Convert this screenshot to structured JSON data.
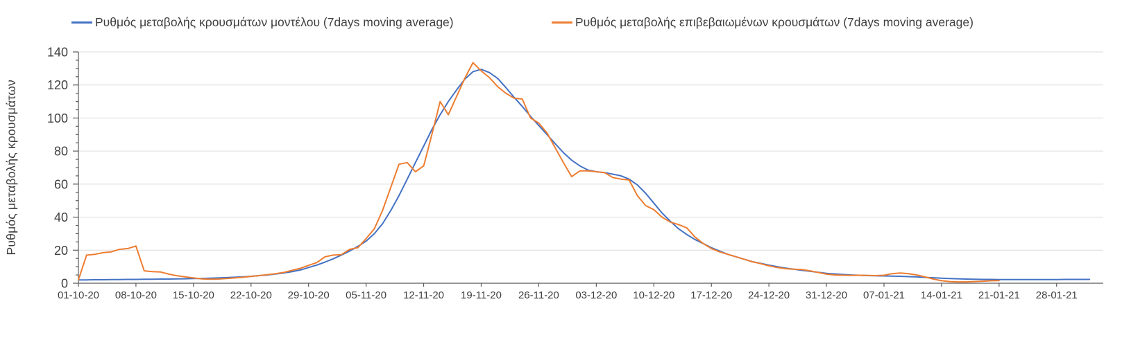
{
  "legend": {
    "items": [
      {
        "label": "Ρυθμός μεταβολής κρουσμάτων μοντέλου (7days moving average)",
        "color": "#4472C4"
      },
      {
        "label": "Ρυθμός μεταβολής επιβεβαιωμένων κρουσμάτων (7days moving average)",
        "color": "#ED7D31"
      }
    ]
  },
  "chart_data": {
    "type": "line",
    "title": "",
    "xlabel": "",
    "ylabel": "Ρυθμός μεταβολής κρουσμάτων",
    "ylim": [
      0,
      140
    ],
    "y_major_step": 20,
    "y_minor_step": 5,
    "y_tick_labels": [
      "0",
      "20",
      "40",
      "60",
      "80",
      "100",
      "120",
      "140"
    ],
    "x_unit": "days since 01-10-20",
    "x_tick_interval_days": 7,
    "x_tick_labels": [
      "01-10-20",
      "08-10-20",
      "15-10-20",
      "22-10-20",
      "29-10-20",
      "05-11-20",
      "12-11-20",
      "19-11-20",
      "26-11-20",
      "03-12-20",
      "10-12-20",
      "17-12-20",
      "24-12-20",
      "31-12-20",
      "07-01-21",
      "14-01-21",
      "21-01-21",
      "28-01-21"
    ],
    "x_span_days": 124,
    "grid": "horizontal",
    "legend_position": "top",
    "series": [
      {
        "name": "Ρυθμός μεταβολής κρουσμάτων μοντέλου (7days moving average)",
        "color": "#4472C4",
        "start_day": 0,
        "values": [
          2,
          2,
          2.1,
          2.1,
          2.2,
          2.2,
          2.3,
          2.3,
          2.4,
          2.4,
          2.5,
          2.5,
          2.6,
          2.7,
          2.8,
          2.9,
          3,
          3.2,
          3.4,
          3.6,
          3.9,
          4.2,
          4.6,
          5,
          5.6,
          6.2,
          7,
          8,
          9.5,
          11,
          12.8,
          14.8,
          17,
          19.5,
          22.3,
          25.5,
          30,
          36,
          44,
          53,
          63,
          73,
          83,
          93,
          102,
          110,
          117,
          123.5,
          128,
          129.5,
          127.5,
          124,
          118.5,
          112.5,
          107,
          101,
          95.5,
          90,
          84.5,
          79,
          74.5,
          71,
          68.5,
          67.5,
          67,
          66,
          65,
          63,
          59.5,
          54.5,
          48.5,
          42.5,
          37.5,
          33,
          29.5,
          26.5,
          24,
          21.5,
          19.5,
          17.5,
          16,
          14.5,
          13,
          12,
          11,
          10,
          9.2,
          8.5,
          7.8,
          7.2,
          6.6,
          6,
          5.6,
          5.3,
          5,
          4.8,
          4.6,
          4.5,
          4.4,
          4.3,
          4.2,
          4,
          3.8,
          3.5,
          3.3,
          3,
          2.8,
          2.7,
          2.5,
          2.4,
          2.3,
          2.3,
          2.2,
          2.2,
          2.2,
          2.2,
          2.2,
          2.2,
          2.2,
          2.2,
          2.3,
          2.3,
          2.3,
          2.3
        ]
      },
      {
        "name": "Ρυθμός μεταβολής επιβεβαιωμένων κρουσμάτων (7days moving average)",
        "color": "#ED7D31",
        "start_day": 0,
        "values": [
          2,
          17,
          17.5,
          18.5,
          19,
          20.5,
          21,
          22.5,
          7.5,
          7,
          6.8,
          5.5,
          4.5,
          3.8,
          3.2,
          2.6,
          2.4,
          2.5,
          2.8,
          3.2,
          3.6,
          4.1,
          4.6,
          5.2,
          5.8,
          6.6,
          7.8,
          9,
          10.8,
          12.5,
          16,
          17,
          17.3,
          20.5,
          21.5,
          27,
          33,
          44,
          58,
          72,
          73,
          67.5,
          71,
          90,
          110,
          102,
          113,
          124,
          133.5,
          128.5,
          124.5,
          119,
          115,
          112,
          111.5,
          100,
          97,
          91,
          82,
          73,
          64.5,
          68,
          68,
          67.5,
          67,
          64,
          63,
          62.5,
          53,
          47,
          44.5,
          40,
          37,
          35.5,
          33.5,
          28,
          24,
          21,
          19,
          17.5,
          16,
          14.5,
          13,
          11.8,
          10.5,
          9.5,
          8.8,
          8.5,
          8.3,
          7.5,
          6.5,
          5.5,
          5,
          4.8,
          4.7,
          4.8,
          4.7,
          4.6,
          4.8,
          5.8,
          6.2,
          5.8,
          5,
          3.8,
          2.5,
          1.5,
          1,
          0.8,
          0.8,
          1,
          1.2,
          1.5,
          1.6
        ]
      }
    ]
  },
  "colors": {
    "axis": "#595959",
    "gridline": "#dcdcdc",
    "tick_label": "#3f3f3f"
  }
}
